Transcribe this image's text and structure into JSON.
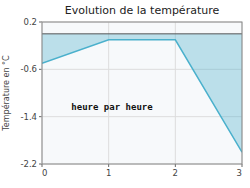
{
  "chart_data": {
    "type": "area",
    "title": "Evolution de la température",
    "x_label": "heure par heure",
    "y_label": "Température en °C",
    "x": [
      0,
      1,
      2,
      3
    ],
    "series": [
      {
        "color": "#4ab0cc",
        "values": [
          -0.5,
          -0.1,
          -0.1,
          -2.0
        ]
      }
    ],
    "baseline": 0,
    "xlim": [
      0,
      3
    ],
    "ylim": [
      -2.2,
      0.2
    ],
    "xticks": [
      0,
      1,
      2,
      3
    ],
    "yticks": [
      0.2,
      -0.6,
      -1.4,
      -2.2
    ],
    "grid": true
  }
}
